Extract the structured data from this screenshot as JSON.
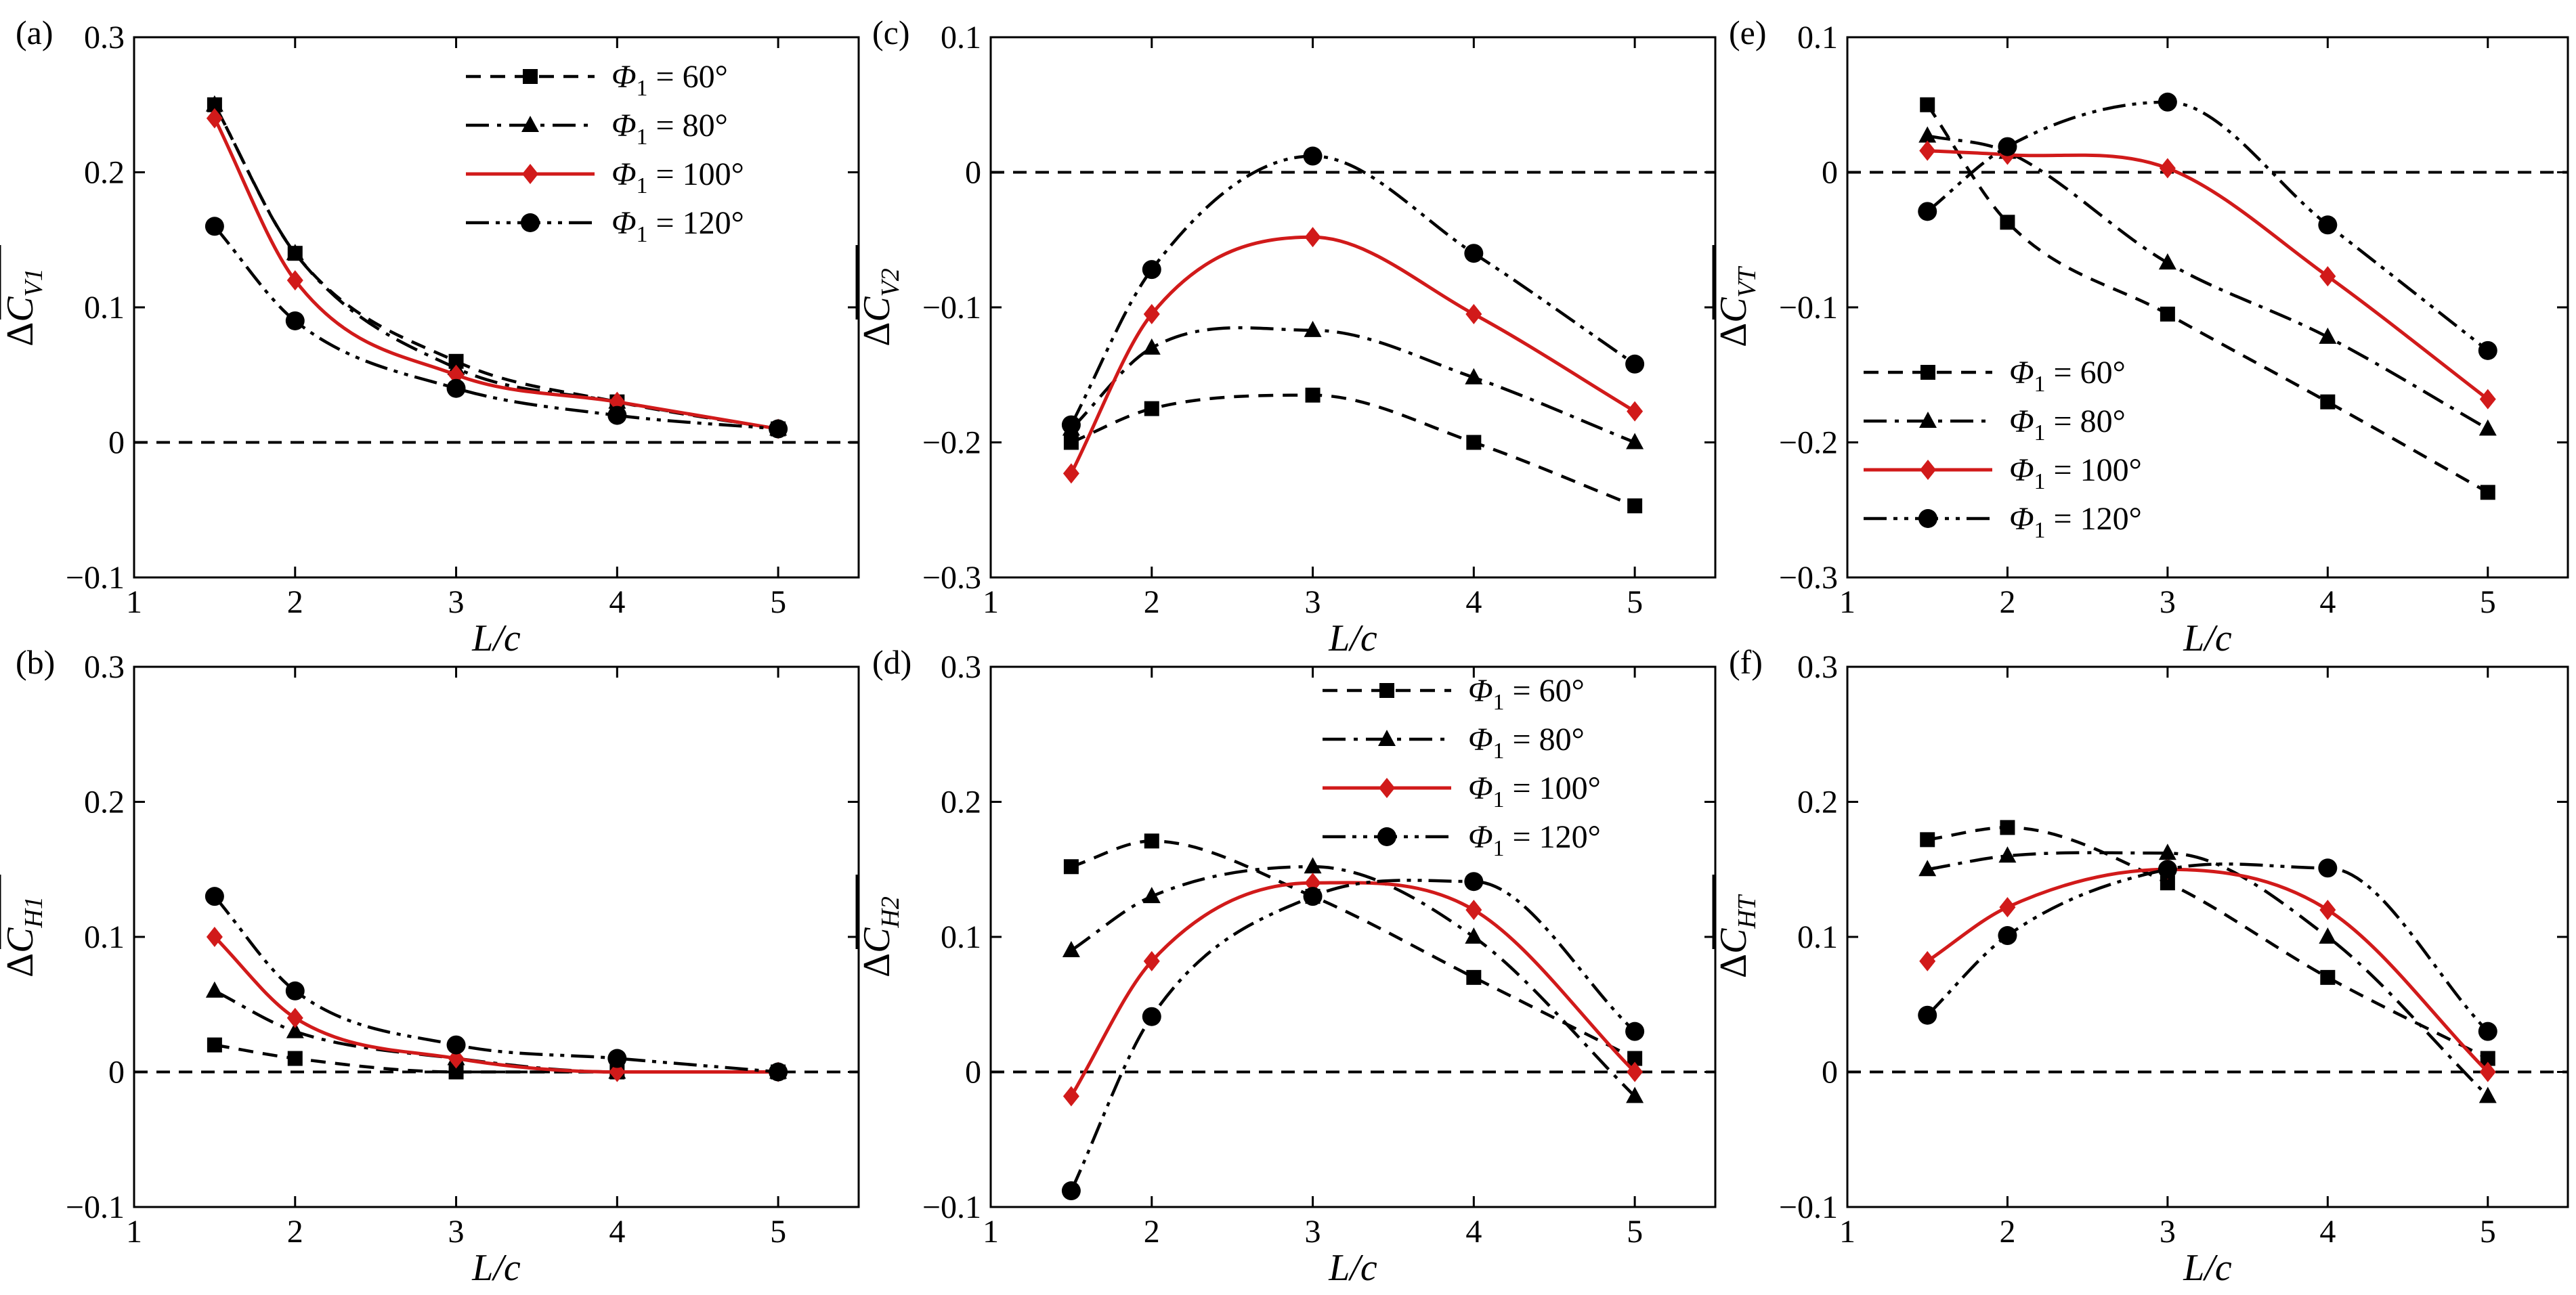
{
  "colors": {
    "series_60": "#000000",
    "series_80": "#000000",
    "series_100": "#d11a1a",
    "series_120": "#000000",
    "zero_line": "#000000"
  },
  "legend_entries": [
    {
      "phi": "Φ",
      "sub": "1",
      "text": " = 60°"
    },
    {
      "phi": "Φ",
      "sub": "1",
      "text": " = 80°"
    },
    {
      "phi": "Φ",
      "sub": "1",
      "text": " = 100°"
    },
    {
      "phi": "Φ",
      "sub": "1",
      "text": " = 120°"
    }
  ],
  "chart_data": [
    {
      "panel": "(a)",
      "type": "line",
      "ylabel": {
        "prefix": "Δ",
        "var": "C",
        "sub": "V1"
      },
      "xlabel": "L/c",
      "xlim": [
        1,
        5.5
      ],
      "ylim": [
        -0.1,
        0.3
      ],
      "xticks": [
        1,
        2,
        3,
        4,
        5
      ],
      "xtick_labels": [
        "1",
        "2",
        "3",
        "4",
        "5"
      ],
      "yticks": [
        -0.1,
        0,
        0.1,
        0.2,
        0.3
      ],
      "ytick_labels": [
        "−0.1",
        "0",
        "0.1",
        "0.2",
        "0.3"
      ],
      "legend": "top-right",
      "x": [
        1.5,
        2,
        3,
        4,
        5
      ],
      "series": [
        {
          "name": "Φ1 = 60°",
          "values": [
            0.25,
            0.14,
            0.06,
            0.03,
            0.01
          ]
        },
        {
          "name": "Φ1 = 80°",
          "values": [
            0.25,
            0.14,
            0.055,
            0.03,
            0.01
          ]
        },
        {
          "name": "Φ1 = 100°",
          "values": [
            0.24,
            0.12,
            0.05,
            0.03,
            0.01
          ]
        },
        {
          "name": "Φ1 = 120°",
          "values": [
            0.16,
            0.09,
            0.04,
            0.02,
            0.01
          ]
        }
      ]
    },
    {
      "panel": "(c)",
      "type": "line",
      "ylabel": {
        "prefix": "Δ",
        "var": "C",
        "sub": "V2"
      },
      "xlabel": "L/c",
      "xlim": [
        1,
        5.5
      ],
      "ylim": [
        -0.3,
        0.1
      ],
      "xticks": [
        1,
        2,
        3,
        4,
        5
      ],
      "xtick_labels": [
        "1",
        "2",
        "3",
        "4",
        "5"
      ],
      "yticks": [
        -0.3,
        -0.2,
        -0.1,
        0,
        0.1
      ],
      "ytick_labels": [
        "−0.3",
        "−0.2",
        "−0.1",
        "0",
        "0.1"
      ],
      "legend": "none",
      "x": [
        1.5,
        2,
        3,
        4,
        5
      ],
      "series": [
        {
          "name": "Φ1 = 60°",
          "values": [
            -0.2,
            -0.175,
            -0.165,
            -0.2,
            -0.247
          ]
        },
        {
          "name": "Φ1 = 80°",
          "values": [
            -0.19,
            -0.13,
            -0.117,
            -0.152,
            -0.2
          ]
        },
        {
          "name": "Φ1 = 100°",
          "values": [
            -0.223,
            -0.105,
            -0.048,
            -0.105,
            -0.177
          ]
        },
        {
          "name": "Φ1 = 120°",
          "values": [
            -0.187,
            -0.072,
            0.012,
            -0.06,
            -0.142
          ]
        }
      ]
    },
    {
      "panel": "(e)",
      "type": "line",
      "ylabel": {
        "prefix": "Δ",
        "var": "C",
        "sub": "VT"
      },
      "xlabel": "L/c",
      "xlim": [
        1,
        5.5
      ],
      "ylim": [
        -0.3,
        0.1
      ],
      "xticks": [
        1,
        2,
        3,
        4,
        5
      ],
      "xtick_labels": [
        "1",
        "2",
        "3",
        "4",
        "5"
      ],
      "yticks": [
        -0.3,
        -0.2,
        -0.1,
        0,
        0.1
      ],
      "ytick_labels": [
        "−0.3",
        "−0.2",
        "−0.1",
        "0",
        "0.1"
      ],
      "legend": "bottom-left",
      "x": [
        1.5,
        2,
        3,
        4,
        5
      ],
      "series": [
        {
          "name": "Φ1 = 60°",
          "values": [
            0.05,
            -0.037,
            -0.105,
            -0.17,
            -0.237
          ]
        },
        {
          "name": "Φ1 = 80°",
          "values": [
            0.027,
            0.015,
            -0.067,
            -0.122,
            -0.19
          ]
        },
        {
          "name": "Φ1 = 100°",
          "values": [
            0.016,
            0.013,
            0.003,
            -0.077,
            -0.168
          ]
        },
        {
          "name": "Φ1 = 120°",
          "values": [
            -0.029,
            0.019,
            0.052,
            -0.039,
            -0.132
          ]
        }
      ]
    },
    {
      "panel": "(b)",
      "type": "line",
      "ylabel": {
        "prefix": "Δ",
        "var": "C",
        "sub": "H1"
      },
      "xlabel": "L/c",
      "xlim": [
        1,
        5.5
      ],
      "ylim": [
        -0.1,
        0.3
      ],
      "xticks": [
        1,
        2,
        3,
        4,
        5
      ],
      "xtick_labels": [
        "1",
        "2",
        "3",
        "4",
        "5"
      ],
      "yticks": [
        -0.1,
        0,
        0.1,
        0.2,
        0.3
      ],
      "ytick_labels": [
        "−0.1",
        "0",
        "0.1",
        "0.2",
        "0.3"
      ],
      "legend": "none",
      "x": [
        1.5,
        2,
        3,
        4,
        5
      ],
      "series": [
        {
          "name": "Φ1 = 60°",
          "values": [
            0.02,
            0.01,
            0.0,
            0.0,
            0.0
          ]
        },
        {
          "name": "Φ1 = 80°",
          "values": [
            0.06,
            0.03,
            0.01,
            0.0,
            0.0
          ]
        },
        {
          "name": "Φ1 = 100°",
          "values": [
            0.1,
            0.04,
            0.01,
            0.0,
            0.0
          ]
        },
        {
          "name": "Φ1 = 120°",
          "values": [
            0.13,
            0.06,
            0.02,
            0.01,
            0.0
          ]
        }
      ]
    },
    {
      "panel": "(d)",
      "type": "line",
      "ylabel": {
        "prefix": "Δ",
        "var": "C",
        "sub": "H2"
      },
      "xlabel": "L/c",
      "xlim": [
        1,
        5.5
      ],
      "ylim": [
        -0.1,
        0.3
      ],
      "xticks": [
        1,
        2,
        3,
        4,
        5
      ],
      "xtick_labels": [
        "1",
        "2",
        "3",
        "4",
        "5"
      ],
      "yticks": [
        -0.1,
        0,
        0.1,
        0.2,
        0.3
      ],
      "ytick_labels": [
        "−0.1",
        "0",
        "0.1",
        "0.2",
        "0.3"
      ],
      "legend": "top-right",
      "x": [
        1.5,
        2,
        3,
        4,
        5
      ],
      "series": [
        {
          "name": "Φ1 = 60°",
          "values": [
            0.152,
            0.171,
            0.13,
            0.07,
            0.01
          ]
        },
        {
          "name": "Φ1 = 80°",
          "values": [
            0.09,
            0.13,
            0.152,
            0.1,
            -0.018
          ]
        },
        {
          "name": "Φ1 = 100°",
          "values": [
            -0.018,
            0.082,
            0.14,
            0.12,
            0.0
          ]
        },
        {
          "name": "Φ1 = 120°",
          "values": [
            -0.088,
            0.041,
            0.13,
            0.141,
            0.03
          ]
        }
      ]
    },
    {
      "panel": "(f)",
      "type": "line",
      "ylabel": {
        "prefix": "Δ",
        "var": "C",
        "sub": "HT"
      },
      "xlabel": "L/c",
      "xlim": [
        1,
        5.5
      ],
      "ylim": [
        -0.1,
        0.3
      ],
      "xticks": [
        1,
        2,
        3,
        4,
        5
      ],
      "xtick_labels": [
        "1",
        "2",
        "3",
        "4",
        "5"
      ],
      "yticks": [
        -0.1,
        0,
        0.1,
        0.2,
        0.3
      ],
      "ytick_labels": [
        "−0.1",
        "0",
        "0.1",
        "0.2",
        "0.3"
      ],
      "legend": "none",
      "x": [
        1.5,
        2,
        3,
        4,
        5
      ],
      "series": [
        {
          "name": "Φ1 = 60°",
          "values": [
            0.172,
            0.181,
            0.14,
            0.07,
            0.01
          ]
        },
        {
          "name": "Φ1 = 80°",
          "values": [
            0.15,
            0.16,
            0.162,
            0.1,
            -0.018
          ]
        },
        {
          "name": "Φ1 = 100°",
          "values": [
            0.082,
            0.122,
            0.15,
            0.12,
            0.0
          ]
        },
        {
          "name": "Φ1 = 120°",
          "values": [
            0.042,
            0.101,
            0.15,
            0.151,
            0.03
          ]
        }
      ]
    }
  ]
}
